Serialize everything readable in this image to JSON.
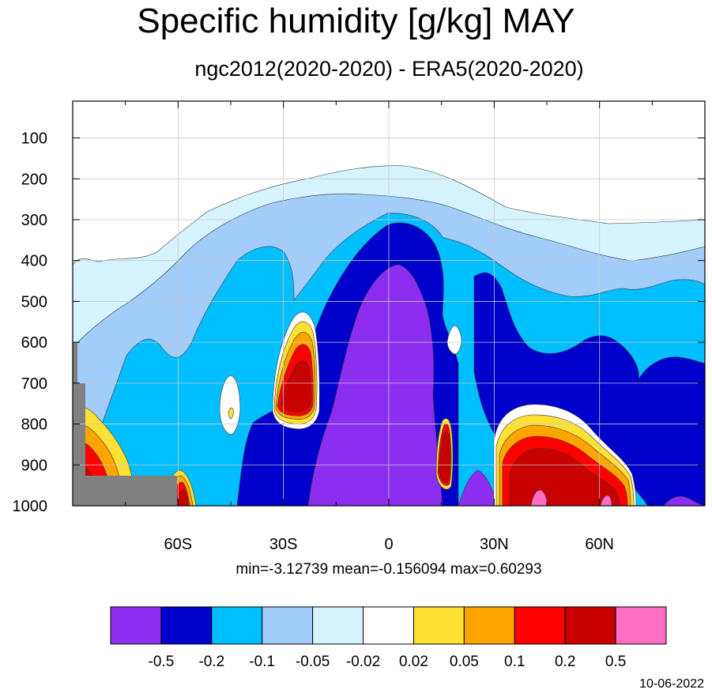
{
  "title": "Specific humidity [g/kg] MAY",
  "subtitle": "ngc2012(2020-2020) - ERA5(2020-2020)",
  "stats": "min=-3.12739   mean=-0.156094   max=0.60293",
  "date": "10-06-2022",
  "chart_data": {
    "type": "heatmap",
    "title": "Specific humidity [g/kg] MAY",
    "subtitle": "ngc2012(2020-2020) - ERA5(2020-2020)",
    "x_ticks": [
      "60S",
      "30S",
      "0",
      "30N",
      "60N"
    ],
    "x_tick_values": [
      -60,
      -30,
      0,
      30,
      60
    ],
    "x_range": [
      -90,
      90
    ],
    "y_ticks": [
      "100",
      "200",
      "300",
      "400",
      "500",
      "600",
      "700",
      "800",
      "900",
      "1000"
    ],
    "y_tick_values": [
      100,
      200,
      300,
      400,
      500,
      600,
      700,
      800,
      900,
      1000
    ],
    "y_range": [
      10,
      1000
    ],
    "grid": true,
    "legend_position": "bottom",
    "colorbar": {
      "labels": [
        "-0.5",
        "-0.2",
        "-0.1",
        "-0.05",
        "-0.02",
        "0.02",
        "0.05",
        "0.1",
        "0.2",
        "0.5"
      ],
      "colors": [
        "#8b2eef",
        "#0000cd",
        "#00bfff",
        "#a2cdfa",
        "#d5f4ff",
        "#ffffff",
        "#ffe133",
        "#ffa500",
        "#ff0000",
        "#c80000",
        "#ff6ec3"
      ]
    },
    "missing_color": "#808080",
    "stats": {
      "min": -3.12739,
      "mean": -0.156094,
      "max": 0.60293
    }
  }
}
